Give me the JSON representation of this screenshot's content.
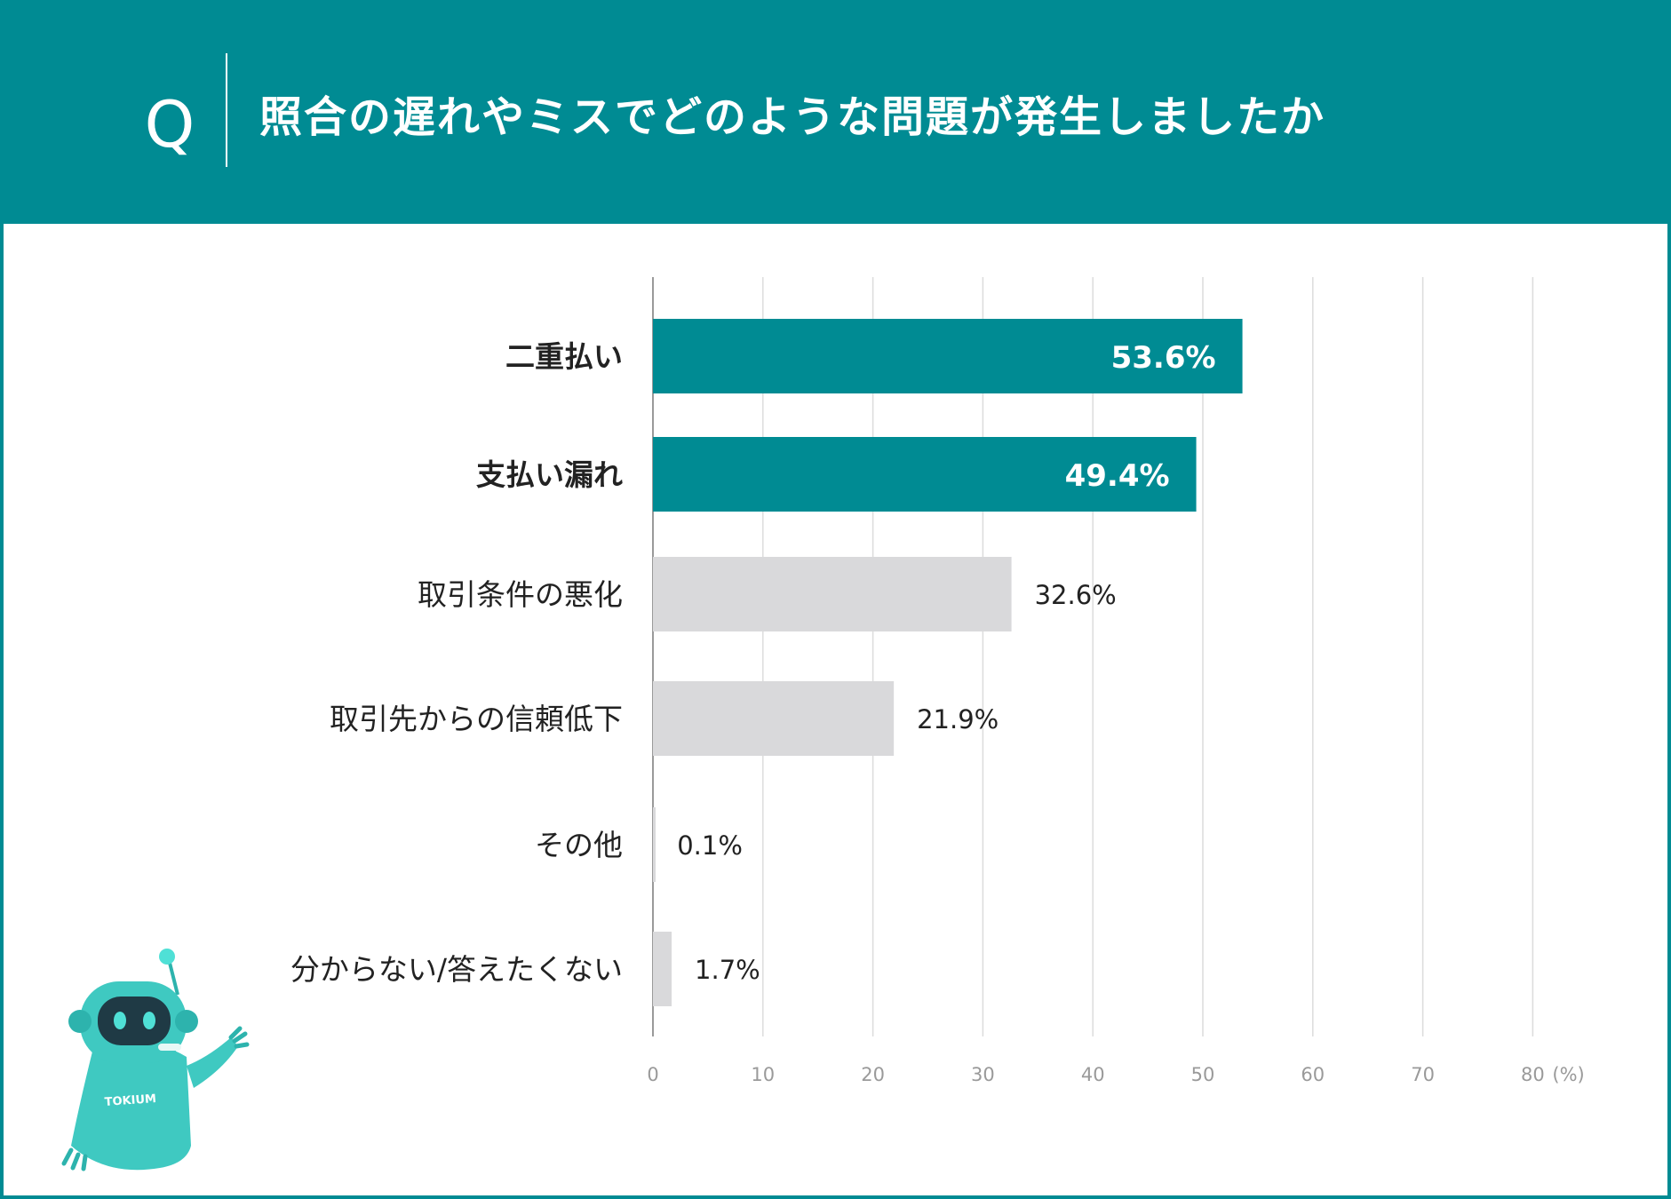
{
  "header": {
    "q_mark": "Q",
    "title": "照合の遅れやミスでどのような問題が発生しましたか"
  },
  "colors": {
    "accent": "#008b93",
    "bar_default": "#d9d9db",
    "grid": "#dcdcdc",
    "robot_body": "#3fc9c1"
  },
  "chart_data": {
    "type": "bar",
    "orientation": "horizontal",
    "categories": [
      "二重払い",
      "支払い漏れ",
      "取引条件の悪化",
      "取引先からの信頼低下",
      "その他",
      "分からない/答えたくない"
    ],
    "values": [
      53.6,
      49.4,
      32.6,
      21.9,
      0.1,
      1.7
    ],
    "value_labels": [
      "53.6%",
      "49.4%",
      "32.6%",
      "21.9%",
      "0.1%",
      "1.7%"
    ],
    "highlight": [
      true,
      true,
      false,
      false,
      false,
      false
    ],
    "xlim": [
      0,
      80
    ],
    "xticks": [
      0,
      10,
      20,
      30,
      40,
      50,
      60,
      70,
      80
    ],
    "xtick_labels": [
      "0",
      "10",
      "20",
      "30",
      "40",
      "50",
      "60",
      "70",
      "80"
    ],
    "unit_label": "(%)",
    "grid": true
  },
  "mascot": {
    "name": "robot-mascot",
    "badge_text": "TOKIUM"
  }
}
